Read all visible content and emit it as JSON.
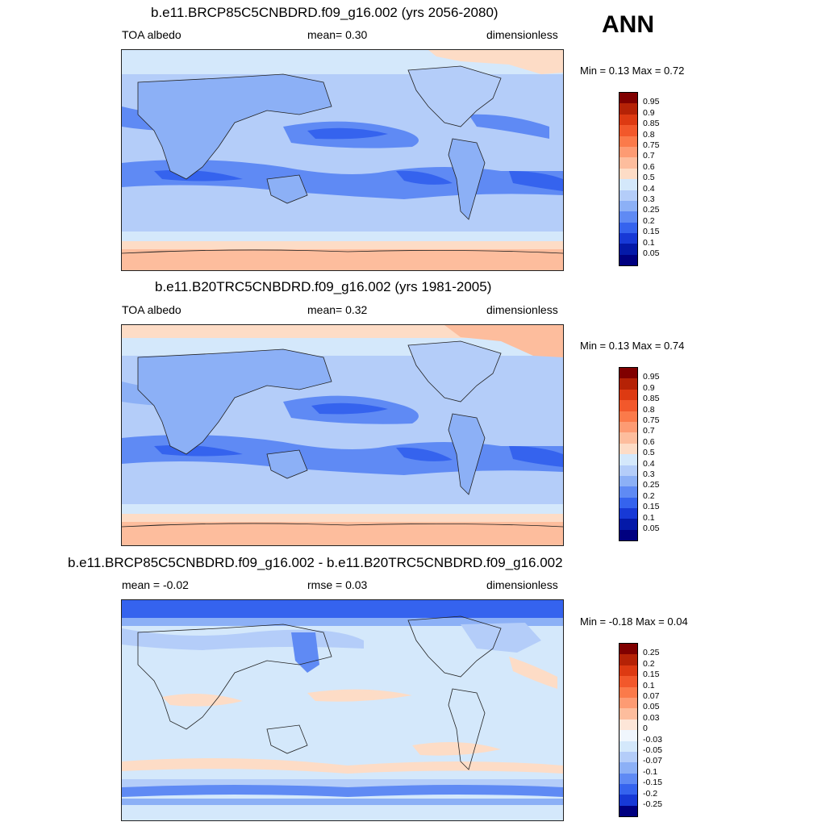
{
  "season": "ANN",
  "panels": [
    {
      "title": "b.e11.BRCP85C5CNBDRD.f09_g16.002 (yrs 2056-2080)",
      "left_label": "TOA albedo",
      "center_label": "mean=   0.30",
      "right_label": "dimensionless",
      "minmax": "Min =   0.13 Max =   0.72",
      "levels": [
        "0.95",
        "0.9",
        "0.85",
        "0.8",
        "0.75",
        "0.7",
        "0.6",
        "0.5",
        "0.4",
        "0.3",
        "0.25",
        "0.2",
        "0.15",
        "0.1",
        "0.05"
      ],
      "colors": [
        "#800000",
        "#b52206",
        "#dd3a12",
        "#f2582b",
        "#fb7a4a",
        "#fd9b73",
        "#fdbd9d",
        "#fddcc6",
        "#d4e8fb",
        "#b4cdf9",
        "#8cb0f6",
        "#5f8af4",
        "#3563ee",
        "#1739d6",
        "#0419a8",
        "#000080"
      ]
    },
    {
      "title": "b.e11.B20TRC5CNBDRD.f09_g16.002 (yrs 1981-2005)",
      "left_label": "TOA albedo",
      "center_label": "mean=   0.32",
      "right_label": "dimensionless",
      "minmax": "Min =   0.13 Max =   0.74",
      "levels": [
        "0.95",
        "0.9",
        "0.85",
        "0.8",
        "0.75",
        "0.7",
        "0.6",
        "0.5",
        "0.4",
        "0.3",
        "0.25",
        "0.2",
        "0.15",
        "0.1",
        "0.05"
      ],
      "colors": [
        "#800000",
        "#b52206",
        "#dd3a12",
        "#f2582b",
        "#fb7a4a",
        "#fd9b73",
        "#fdbd9d",
        "#fddcc6",
        "#d4e8fb",
        "#b4cdf9",
        "#8cb0f6",
        "#5f8af4",
        "#3563ee",
        "#1739d6",
        "#0419a8",
        "#000080"
      ]
    },
    {
      "title": "b.e11.BRCP85C5CNBDRD.f09_g16.002 - b.e11.B20TRC5CNBDRD.f09_g16.002",
      "left_label": "mean =  -0.02",
      "center_label": "rmse =   0.03",
      "right_label": "dimensionless",
      "minmax": "Min =  -0.18 Max =   0.04",
      "levels": [
        "0.25",
        "0.2",
        "0.15",
        "0.1",
        "0.07",
        "0.05",
        "0.03",
        "0",
        "-0.03",
        "-0.05",
        "-0.07",
        "-0.1",
        "-0.15",
        "-0.2",
        "-0.25"
      ],
      "colors": [
        "#800000",
        "#b52206",
        "#dd3a12",
        "#f2582b",
        "#fb7a4a",
        "#fd9b73",
        "#fdbd9d",
        "#fde6d8",
        "#f0f6fd",
        "#d4e8fb",
        "#b4cdf9",
        "#8cb0f6",
        "#5f8af4",
        "#3563ee",
        "#1739d6",
        "#000080"
      ]
    }
  ]
}
